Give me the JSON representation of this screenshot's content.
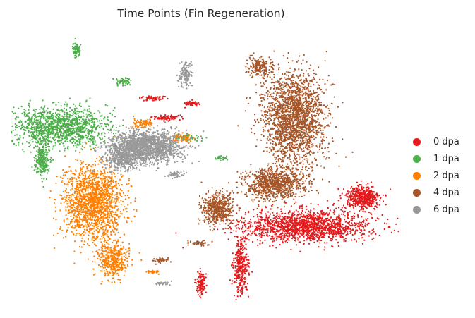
{
  "chart_data": {
    "type": "scatter",
    "title": "Time Points (Fin Regeneration)",
    "xlabel": "",
    "ylabel": "",
    "axes_visible": false,
    "grid": false,
    "legend_position": "right",
    "series": [
      {
        "name": "0 dpa",
        "color": "#e41a1c",
        "clusters": [
          {
            "cx": 8.6,
            "cy": 3.6,
            "sx": 1.6,
            "sy": 0.45,
            "n": 1600
          },
          {
            "cx": 10.3,
            "cy": 4.6,
            "sx": 0.45,
            "sy": 0.35,
            "n": 500
          },
          {
            "cx": 6.6,
            "cy": 2.2,
            "sx": 0.18,
            "sy": 0.8,
            "n": 350
          },
          {
            "cx": 5.4,
            "cy": 1.6,
            "sx": 0.1,
            "sy": 0.35,
            "n": 130
          },
          {
            "cx": 4.3,
            "cy": 7.4,
            "sx": 0.35,
            "sy": 0.08,
            "n": 80
          },
          {
            "cx": 3.9,
            "cy": 8.1,
            "sx": 0.3,
            "sy": 0.08,
            "n": 60
          },
          {
            "cx": 5.1,
            "cy": 7.9,
            "sx": 0.2,
            "sy": 0.08,
            "n": 50
          }
        ]
      },
      {
        "name": "1 dpa",
        "color": "#4daf4a",
        "clusters": [
          {
            "cx": 1.1,
            "cy": 7.1,
            "sx": 1.2,
            "sy": 0.55,
            "n": 1300
          },
          {
            "cx": 0.55,
            "cy": 5.9,
            "sx": 0.18,
            "sy": 0.45,
            "n": 250
          },
          {
            "cx": 1.6,
            "cy": 9.8,
            "sx": 0.1,
            "sy": 0.2,
            "n": 80
          },
          {
            "cx": 3.0,
            "cy": 8.7,
            "sx": 0.18,
            "sy": 0.12,
            "n": 60
          },
          {
            "cx": 5.0,
            "cy": 6.7,
            "sx": 0.4,
            "sy": 0.1,
            "n": 60
          },
          {
            "cx": 6.0,
            "cy": 6.0,
            "sx": 0.15,
            "sy": 0.06,
            "n": 30
          }
        ]
      },
      {
        "name": "2 dpa",
        "color": "#ff7f00",
        "clusters": [
          {
            "cx": 2.1,
            "cy": 4.4,
            "sx": 0.75,
            "sy": 1.1,
            "n": 1600
          },
          {
            "cx": 2.7,
            "cy": 2.4,
            "sx": 0.4,
            "sy": 0.5,
            "n": 400
          },
          {
            "cx": 3.6,
            "cy": 7.2,
            "sx": 0.25,
            "sy": 0.12,
            "n": 80
          },
          {
            "cx": 4.8,
            "cy": 6.7,
            "sx": 0.3,
            "sy": 0.12,
            "n": 60
          },
          {
            "cx": 3.9,
            "cy": 2.0,
            "sx": 0.15,
            "sy": 0.05,
            "n": 40
          }
        ]
      },
      {
        "name": "4 dpa",
        "color": "#a65628",
        "clusters": [
          {
            "cx": 8.2,
            "cy": 7.4,
            "sx": 0.8,
            "sy": 1.3,
            "n": 2000
          },
          {
            "cx": 7.6,
            "cy": 5.1,
            "sx": 0.75,
            "sy": 0.5,
            "n": 900
          },
          {
            "cx": 5.9,
            "cy": 4.2,
            "sx": 0.4,
            "sy": 0.45,
            "n": 500
          },
          {
            "cx": 7.2,
            "cy": 9.2,
            "sx": 0.35,
            "sy": 0.3,
            "n": 200
          },
          {
            "cx": 4.2,
            "cy": 2.4,
            "sx": 0.2,
            "sy": 0.08,
            "n": 40
          },
          {
            "cx": 5.3,
            "cy": 3.0,
            "sx": 0.25,
            "sy": 0.08,
            "n": 40
          }
        ]
      },
      {
        "name": "6 dpa",
        "color": "#999999",
        "clusters": [
          {
            "cx": 3.7,
            "cy": 6.4,
            "sx": 0.9,
            "sy": 0.45,
            "n": 1700
          },
          {
            "cx": 3.0,
            "cy": 6.0,
            "sx": 0.45,
            "sy": 0.35,
            "n": 400
          },
          {
            "cx": 4.9,
            "cy": 8.9,
            "sx": 0.15,
            "sy": 0.35,
            "n": 150
          },
          {
            "cx": 4.6,
            "cy": 5.4,
            "sx": 0.25,
            "sy": 0.1,
            "n": 50
          },
          {
            "cx": 4.2,
            "cy": 1.6,
            "sx": 0.2,
            "sy": 0.06,
            "n": 30
          }
        ]
      }
    ],
    "xlim": [
      -0.3,
      11.3
    ],
    "ylim": [
      0.9,
      10.3
    ]
  }
}
